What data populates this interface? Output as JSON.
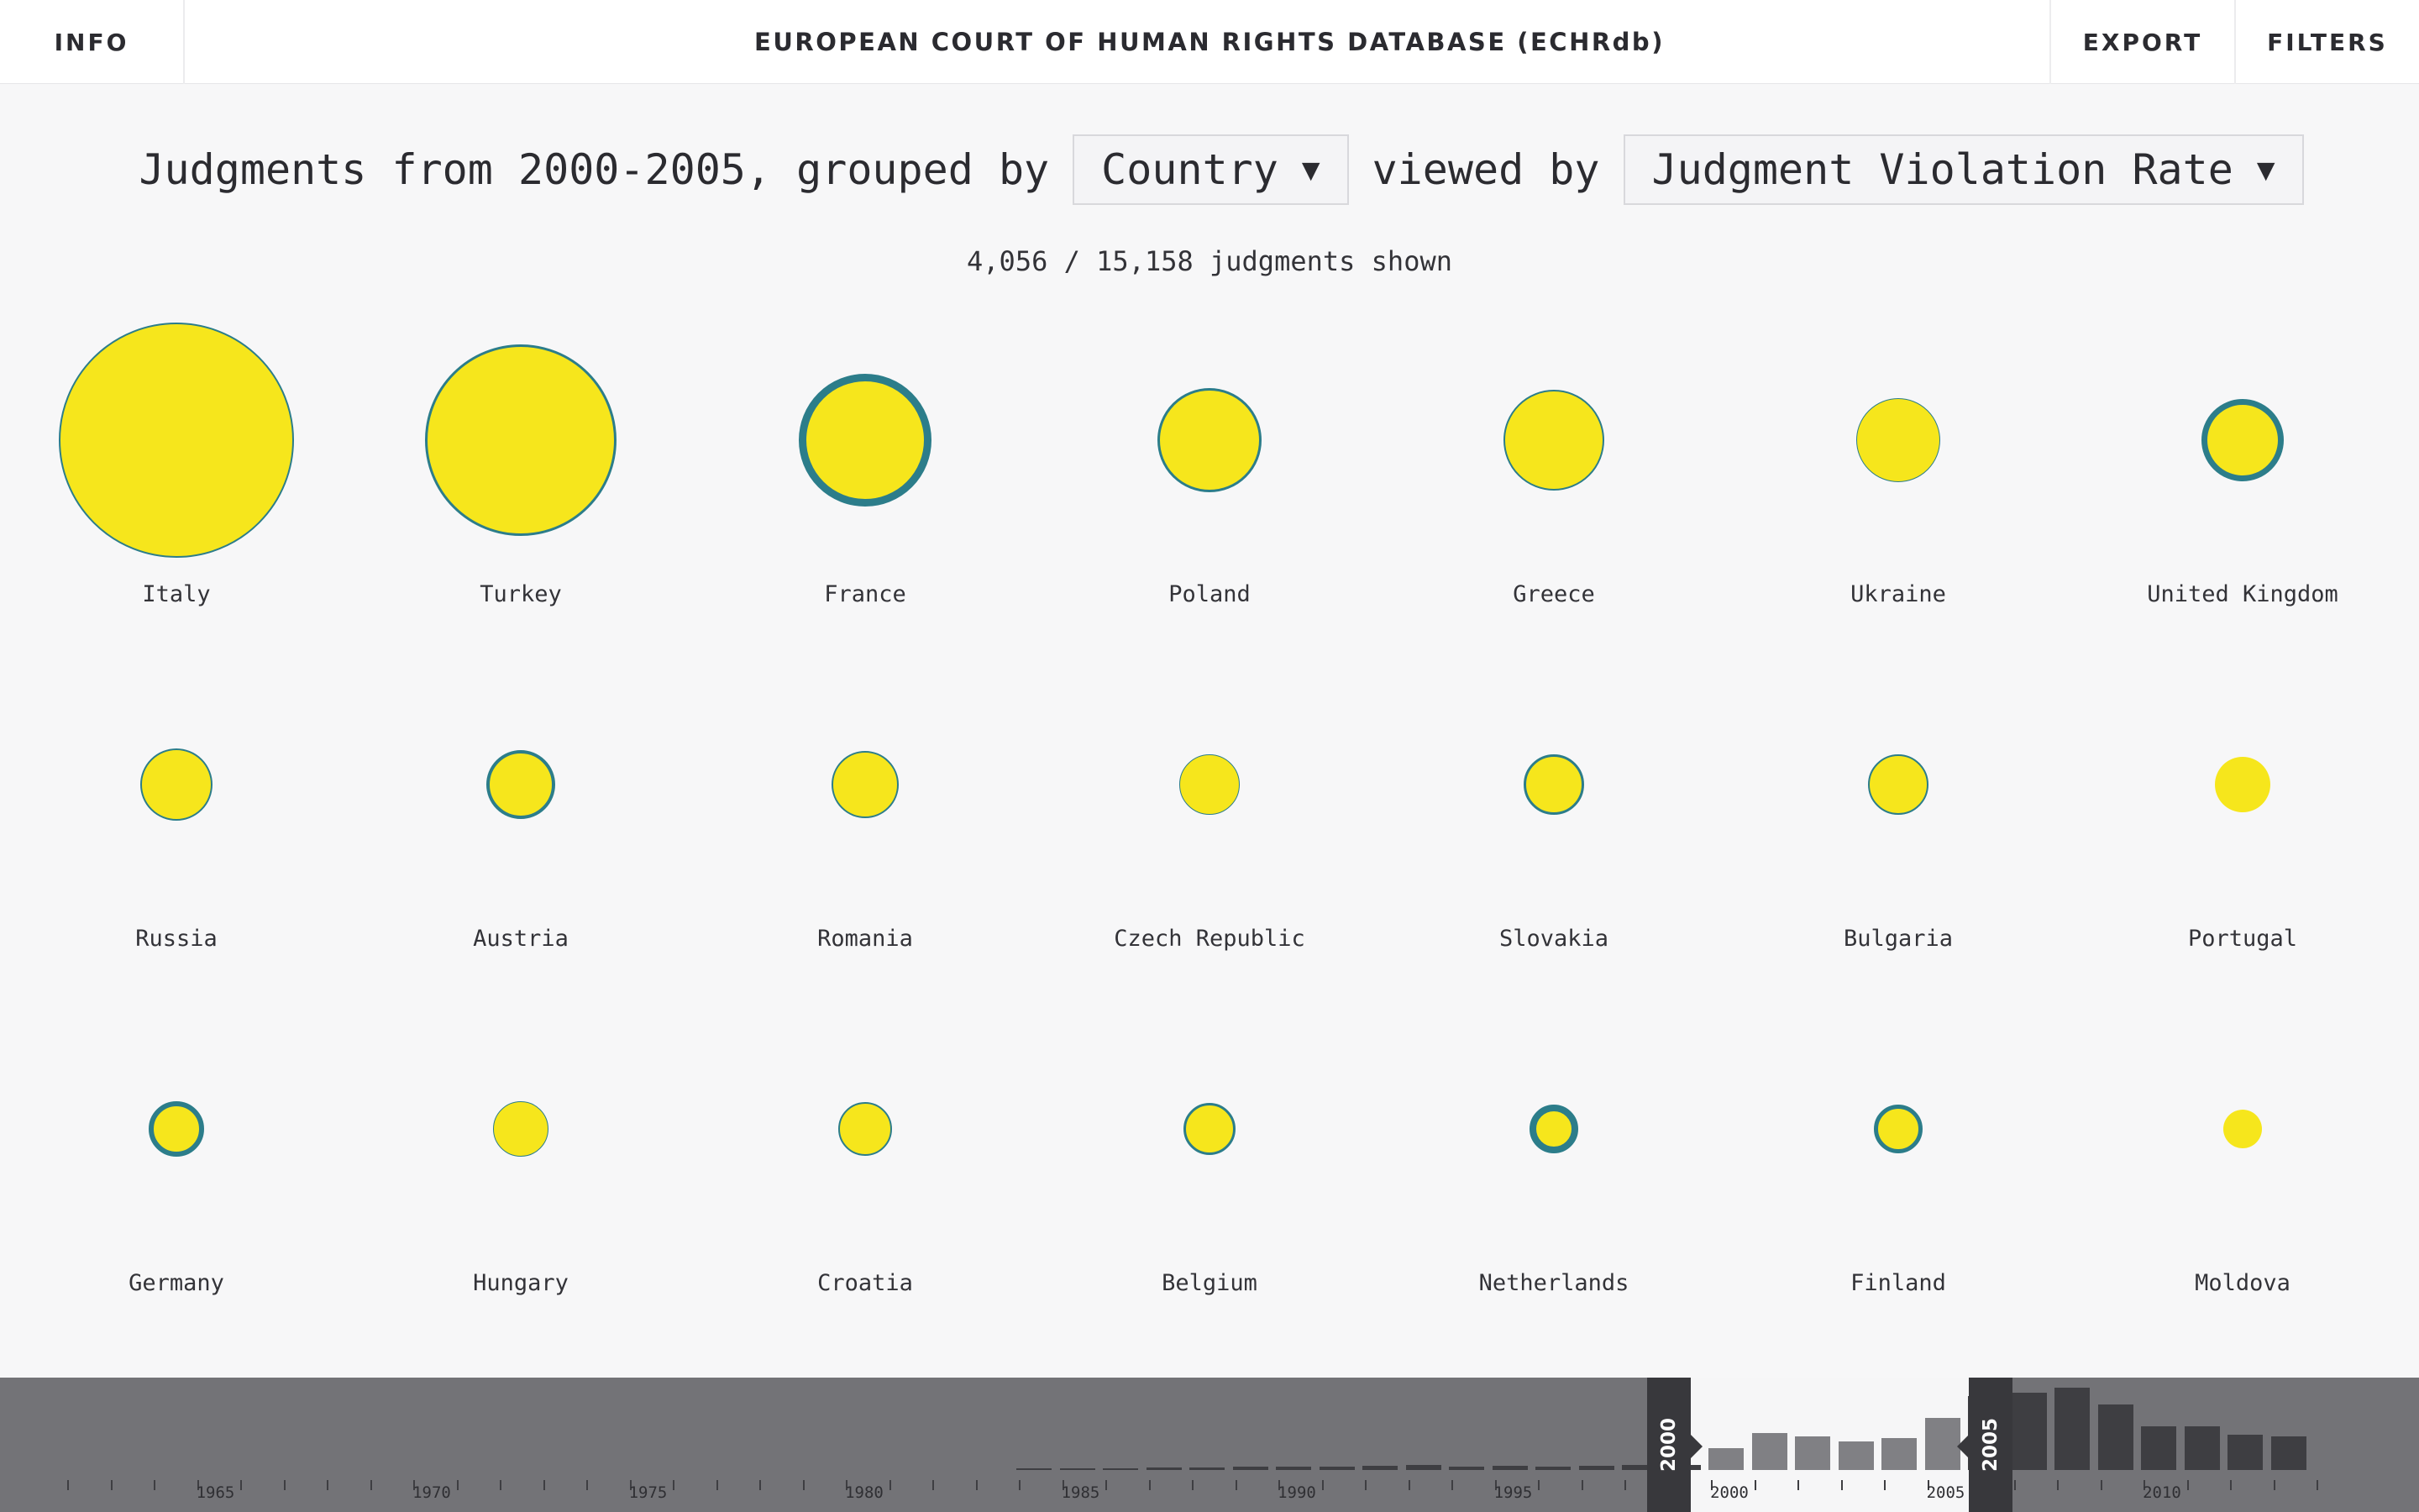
{
  "nav": {
    "info_label": "INFO",
    "title": "EUROPEAN COURT OF HUMAN RIGHTS DATABASE (ECHRdb)",
    "export_label": "EXPORT",
    "filters_label": "FILTERS"
  },
  "query": {
    "prefix": "Judgments from 2000-2005, grouped by",
    "group_by": "Country",
    "middle": "viewed by",
    "view_by": "Judgment Violation Rate",
    "caret": "▼"
  },
  "count_text": "4,056 / 15,158 judgments shown",
  "colors": {
    "bubble_fill": "#f6e61c",
    "bubble_outline": "#2c7d8a",
    "timeline_bg": "#737377",
    "timeline_bar_out": "#3e3e42",
    "timeline_bar_in": "#808084",
    "handle": "#38383c"
  },
  "countries": [
    {
      "name": "Italy"
    },
    {
      "name": "Turkey"
    },
    {
      "name": "France"
    },
    {
      "name": "Poland"
    },
    {
      "name": "Greece"
    },
    {
      "name": "Ukraine"
    },
    {
      "name": "United Kingdom"
    },
    {
      "name": "Russia"
    },
    {
      "name": "Austria"
    },
    {
      "name": "Romania"
    },
    {
      "name": "Czech Republic"
    },
    {
      "name": "Slovakia"
    },
    {
      "name": "Bulgaria"
    },
    {
      "name": "Portugal"
    },
    {
      "name": "Germany"
    },
    {
      "name": "Hungary"
    },
    {
      "name": "Croatia"
    },
    {
      "name": "Belgium"
    },
    {
      "name": "Netherlands"
    },
    {
      "name": "Finland"
    },
    {
      "name": "Moldova"
    }
  ],
  "timeline": {
    "year_labels": [
      "1965",
      "1970",
      "1975",
      "1980",
      "1985",
      "1990",
      "1995",
      "2000",
      "2005",
      "2010"
    ],
    "range_start_label": "2000",
    "range_end_label": "2005"
  }
}
